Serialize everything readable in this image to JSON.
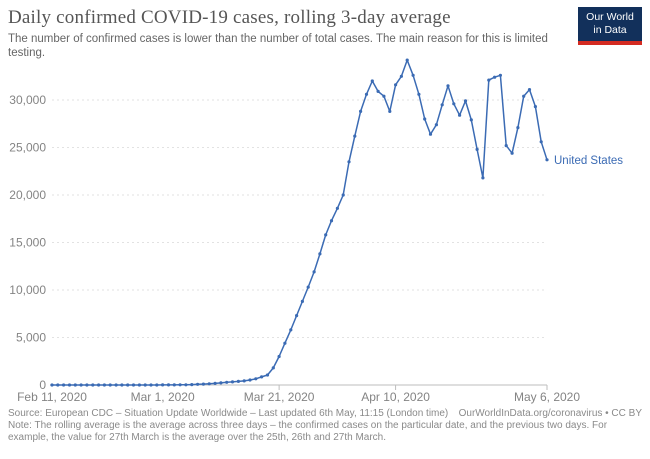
{
  "header": {
    "title": "Daily confirmed COVID-19 cases, rolling 3-day average",
    "subtitle": "The number of confirmed cases is lower than the number of total cases. The main reason for this is limited testing."
  },
  "logo": {
    "line1": "Our World",
    "line2": "in Data",
    "bg_color": "#12305b",
    "bar_color": "#d42b21"
  },
  "chart_data": {
    "type": "line",
    "title": "Daily confirmed COVID-19 cases, rolling 3-day average",
    "xlabel": "",
    "ylabel": "",
    "ylim": [
      0,
      30000
    ],
    "grid": "horizontal-dashed",
    "legend": "end-of-line-label",
    "y_ticks": [
      {
        "value": 0,
        "label": "0"
      },
      {
        "value": 5000,
        "label": "5,000"
      },
      {
        "value": 10000,
        "label": "10,000"
      },
      {
        "value": 15000,
        "label": "15,000"
      },
      {
        "value": 20000,
        "label": "20,000"
      },
      {
        "value": 25000,
        "label": "25,000"
      },
      {
        "value": 30000,
        "label": "30,000"
      }
    ],
    "x_ticks": [
      {
        "label": "Feb 11, 2020",
        "day": 0,
        "tick_mark": false
      },
      {
        "label": "Mar 1, 2020",
        "day": 19,
        "tick_mark": false
      },
      {
        "label": "Mar 21, 2020",
        "day": 39,
        "tick_mark": true
      },
      {
        "label": "Apr 10, 2020",
        "day": 59,
        "tick_mark": true
      },
      {
        "label": "May 6, 2020",
        "day": 85,
        "tick_mark": true
      }
    ],
    "colors": {
      "line": "#3b6bb4",
      "grid": "#e2e2e2",
      "axis": "#bdbdbd",
      "tick_text": "#848484"
    },
    "series": [
      {
        "name": "United States",
        "color": "#3b6bb4",
        "start_date": "Feb 11, 2020",
        "end_date": "May 6, 2020",
        "frequency": "daily",
        "values": [
          0,
          0,
          0,
          0,
          0,
          1,
          1,
          1,
          1,
          1,
          1,
          1,
          1,
          2,
          2,
          2,
          3,
          4,
          5,
          7,
          10,
          14,
          18,
          25,
          40,
          70,
          100,
          130,
          170,
          220,
          280,
          330,
          380,
          430,
          530,
          650,
          850,
          1050,
          1800,
          3000,
          4400,
          5800,
          7300,
          8800,
          10300,
          11900,
          13800,
          15800,
          17300,
          18600,
          20000,
          23500,
          26200,
          28800,
          30600,
          32000,
          30900,
          30400,
          28800,
          31600,
          32500,
          34200,
          32600,
          30600,
          28000,
          26400,
          27400,
          29500,
          31500,
          29600,
          28400,
          29900,
          27900,
          24800,
          21800,
          32100,
          32400,
          32600,
          25200,
          24400,
          27100,
          30400,
          31100,
          29300,
          25600,
          23700
        ]
      }
    ]
  },
  "footer": {
    "source_left": "Source: European CDC – Situation Update Worldwide – Last updated 6th May, 11:15 (London time)",
    "source_right": "OurWorldInData.org/coronavirus • CC BY",
    "note_line1": "Note: The rolling average is the average across three days – the confirmed cases on the particular date, and the previous two days. For",
    "note_line2": "example, the value for 27th March is the average over the 25th, 26th and 27th March."
  }
}
